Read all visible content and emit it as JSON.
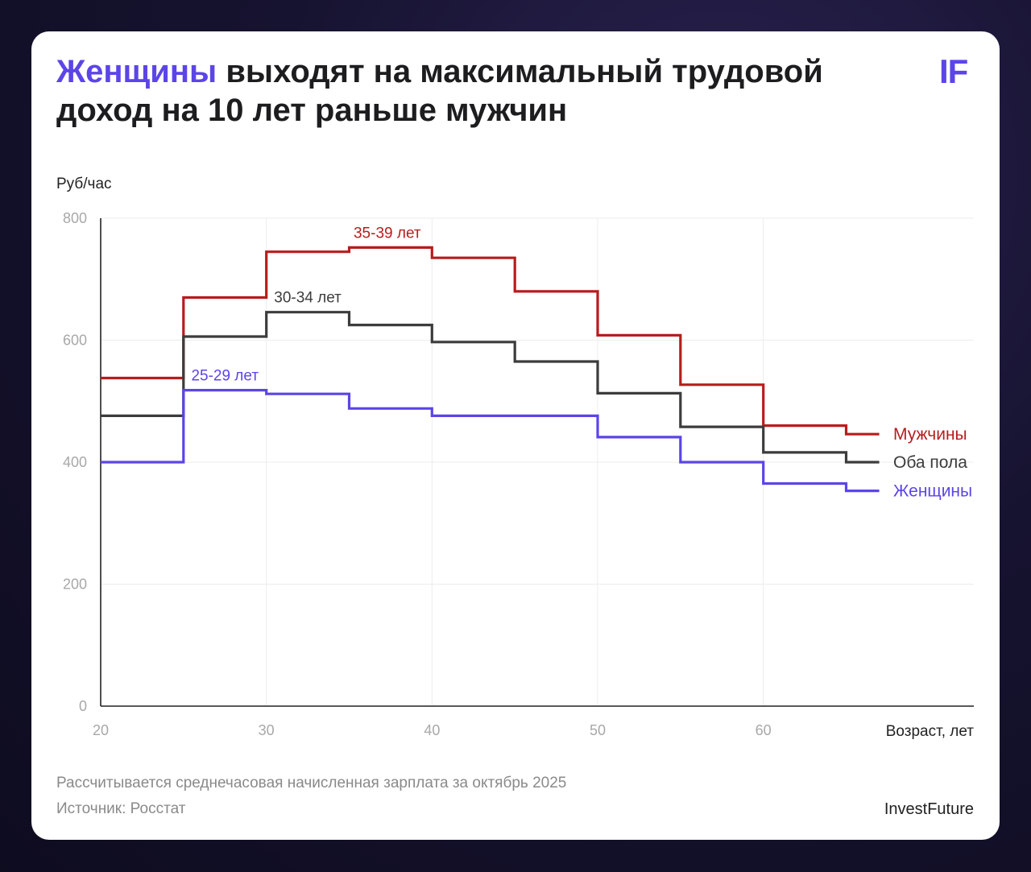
{
  "header": {
    "title_highlight": "Женщины",
    "title_rest": " выходят на максимальный трудовой доход на 10 лет раньше мужчин",
    "logo": "IF"
  },
  "colors": {
    "accent": "#5b45e8",
    "men": "#b81c1c",
    "both": "#3c3c3c",
    "women": "#5b45e8"
  },
  "chart_data": {
    "type": "line",
    "step": true,
    "ylabel": "Руб/час",
    "xlabel": "Возраст, лет",
    "xlim": [
      20,
      67
    ],
    "ylim": [
      0,
      800
    ],
    "x_ticks": [
      "20",
      "30",
      "40",
      "50",
      "60"
    ],
    "y_ticks": [
      "0",
      "200",
      "400",
      "600",
      "800"
    ],
    "grid": true,
    "legend": "right",
    "x_edges": [
      20,
      25,
      30,
      35,
      40,
      45,
      50,
      55,
      60,
      65,
      67
    ],
    "series": [
      {
        "name": "Мужчины",
        "color": "#b81c1c",
        "values": [
          538,
          670,
          745,
          752,
          735,
          680,
          608,
          527,
          460,
          446
        ]
      },
      {
        "name": "Оба пола",
        "color": "#3c3c3c",
        "values": [
          476,
          606,
          646,
          625,
          597,
          565,
          513,
          458,
          416,
          400
        ]
      },
      {
        "name": "Женщины",
        "color": "#5b45e8",
        "values": [
          400,
          518,
          512,
          488,
          476,
          476,
          441,
          400,
          365,
          353
        ]
      }
    ],
    "annotations": [
      {
        "text": "35-39 лет",
        "series": "Мужчины",
        "x": 37.3,
        "y": 752,
        "color": "#b81c1c"
      },
      {
        "text": "30-34 лет",
        "series": "Оба пола",
        "x": 32.5,
        "y": 646,
        "color": "#3c3c3c"
      },
      {
        "text": "25-29 лет",
        "series": "Женщины",
        "x": 27.5,
        "y": 518,
        "color": "#5b45e8"
      }
    ]
  },
  "footer": {
    "note": "Рассчитывается среднечасовая начисленная зарплата за октябрь 2025",
    "source": "Источник: Росстат",
    "brand": "InvestFuture"
  }
}
